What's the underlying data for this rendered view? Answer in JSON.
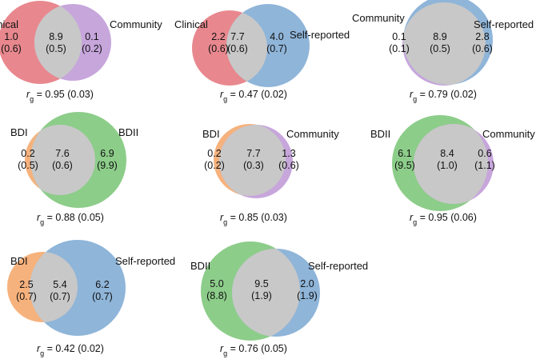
{
  "colors": {
    "clinical": "#e8888e",
    "community": "#c7a6dc",
    "self_reported": "#8fb5d9",
    "bdi": "#f6b27d",
    "bdii": "#8dcd8a",
    "overlap": "#c8c8c8"
  },
  "venns": [
    {
      "left_label": "Clinical",
      "right_label": "Community",
      "left_color": "clinical",
      "right_color": "community",
      "left_value": "1.0",
      "left_se": "(0.6)",
      "center_value": "8.9",
      "center_se": "(0.5)",
      "right_value": "0.1",
      "right_se": "(0.2)",
      "rg_symbol": "r",
      "rg_sub": "g",
      "rg_text": " = 0.95 (0.03)"
    },
    {
      "left_label": "Clinical",
      "right_label": "Self-reported",
      "left_color": "clinical",
      "right_color": "self_reported",
      "left_value": "2.2",
      "left_se": "(0.6)",
      "center_value": "7.7",
      "center_se": "(0.6)",
      "right_value": "4.0",
      "right_se": "(0.7)",
      "rg_symbol": "r",
      "rg_sub": "g",
      "rg_text": " = 0.47 (0.02)"
    },
    {
      "left_label": "Community",
      "right_label": "Self-reported",
      "left_color": "community",
      "right_color": "self_reported",
      "left_value": "0.1",
      "left_se": "(0.1)",
      "center_value": "8.9",
      "center_se": "(0.5)",
      "right_value": "2.8",
      "right_se": "(0.6)",
      "rg_symbol": "r",
      "rg_sub": "g",
      "rg_text": " = 0.79 (0.02)"
    },
    {
      "left_label": "BDI",
      "right_label": "BDII",
      "left_color": "bdi",
      "right_color": "bdii",
      "left_value": "0.2",
      "left_se": "(0.5)",
      "center_value": "7.6",
      "center_se": "(0.6)",
      "right_value": "6.9",
      "right_se": "(9.9)",
      "rg_symbol": "r",
      "rg_sub": "g",
      "rg_text": " = 0.88 (0.05)"
    },
    {
      "left_label": "BDI",
      "right_label": "Community",
      "left_color": "bdi",
      "right_color": "community",
      "left_value": "0.2",
      "left_se": "(0.2)",
      "center_value": "7.7",
      "center_se": "(0.3)",
      "right_value": "1.3",
      "right_se": "(0.6)",
      "rg_symbol": "r",
      "rg_sub": "g",
      "rg_text": " = 0.85 (0.03)"
    },
    {
      "left_label": "BDII",
      "right_label": "Community",
      "left_color": "bdii",
      "right_color": "community",
      "left_value": "6.1",
      "left_se": "(9.5)",
      "center_value": "8.4",
      "center_se": "(1.0)",
      "right_value": "0.6",
      "right_se": "(1.1)",
      "rg_symbol": "r",
      "rg_sub": "g",
      "rg_text": " = 0.95 (0.06)"
    },
    {
      "left_label": "BDI",
      "right_label": "Self-reported",
      "left_color": "bdi",
      "right_color": "self_reported",
      "left_value": "2.5",
      "left_se": "(0.7)",
      "center_value": "5.4",
      "center_se": "(0.7)",
      "right_value": "6.2",
      "right_se": "(0.7)",
      "rg_symbol": "r",
      "rg_sub": "g",
      "rg_text": " = 0.42 (0.02)"
    },
    {
      "left_label": "BDII",
      "right_label": "Self-reported",
      "left_color": "bdii",
      "right_color": "self_reported",
      "left_value": "5.0",
      "left_se": "(8.8)",
      "center_value": "9.5",
      "center_se": "(1.9)",
      "right_value": "2.0",
      "right_se": "(1.9)",
      "rg_symbol": "r",
      "rg_sub": "g",
      "rg_text": " = 0.76 (0.05)"
    }
  ]
}
